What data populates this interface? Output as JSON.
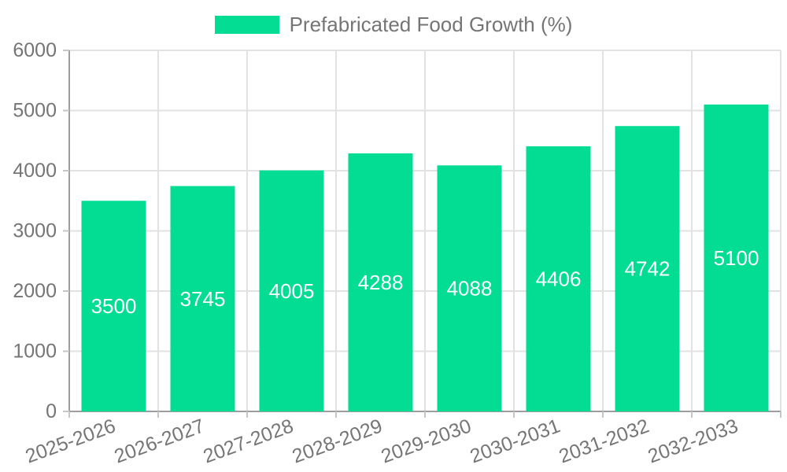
{
  "chart_data": {
    "type": "bar",
    "title": "",
    "categories": [
      "2025-2026",
      "2026-2027",
      "2027-2028",
      "2028-2029",
      "2029-2030",
      "2030-2031",
      "2031-2032",
      "2032-2033"
    ],
    "series": [
      {
        "name": "Prefabricated Food Growth (%)",
        "values": [
          3500,
          3745,
          4005,
          4288,
          4088,
          4406,
          4742,
          5100
        ]
      }
    ],
    "xlabel": "",
    "ylabel": "",
    "ylim": [
      0,
      6000
    ],
    "yticks": [
      0,
      1000,
      2000,
      3000,
      4000,
      5000,
      6000
    ],
    "grid": true,
    "legend_position": "top-center",
    "x_label_rotation_deg": -20,
    "bar_value_labels": "inside-middle",
    "colors": {
      "bar": "#03DC93",
      "bar_label_text": "#ffffff",
      "axis_text": "#757575",
      "axis_line": "#9e9e9e",
      "gridline": "#e2e2e2",
      "tick": "#c6c6c6",
      "legend_text": "#757575",
      "background": "#ffffff"
    }
  }
}
